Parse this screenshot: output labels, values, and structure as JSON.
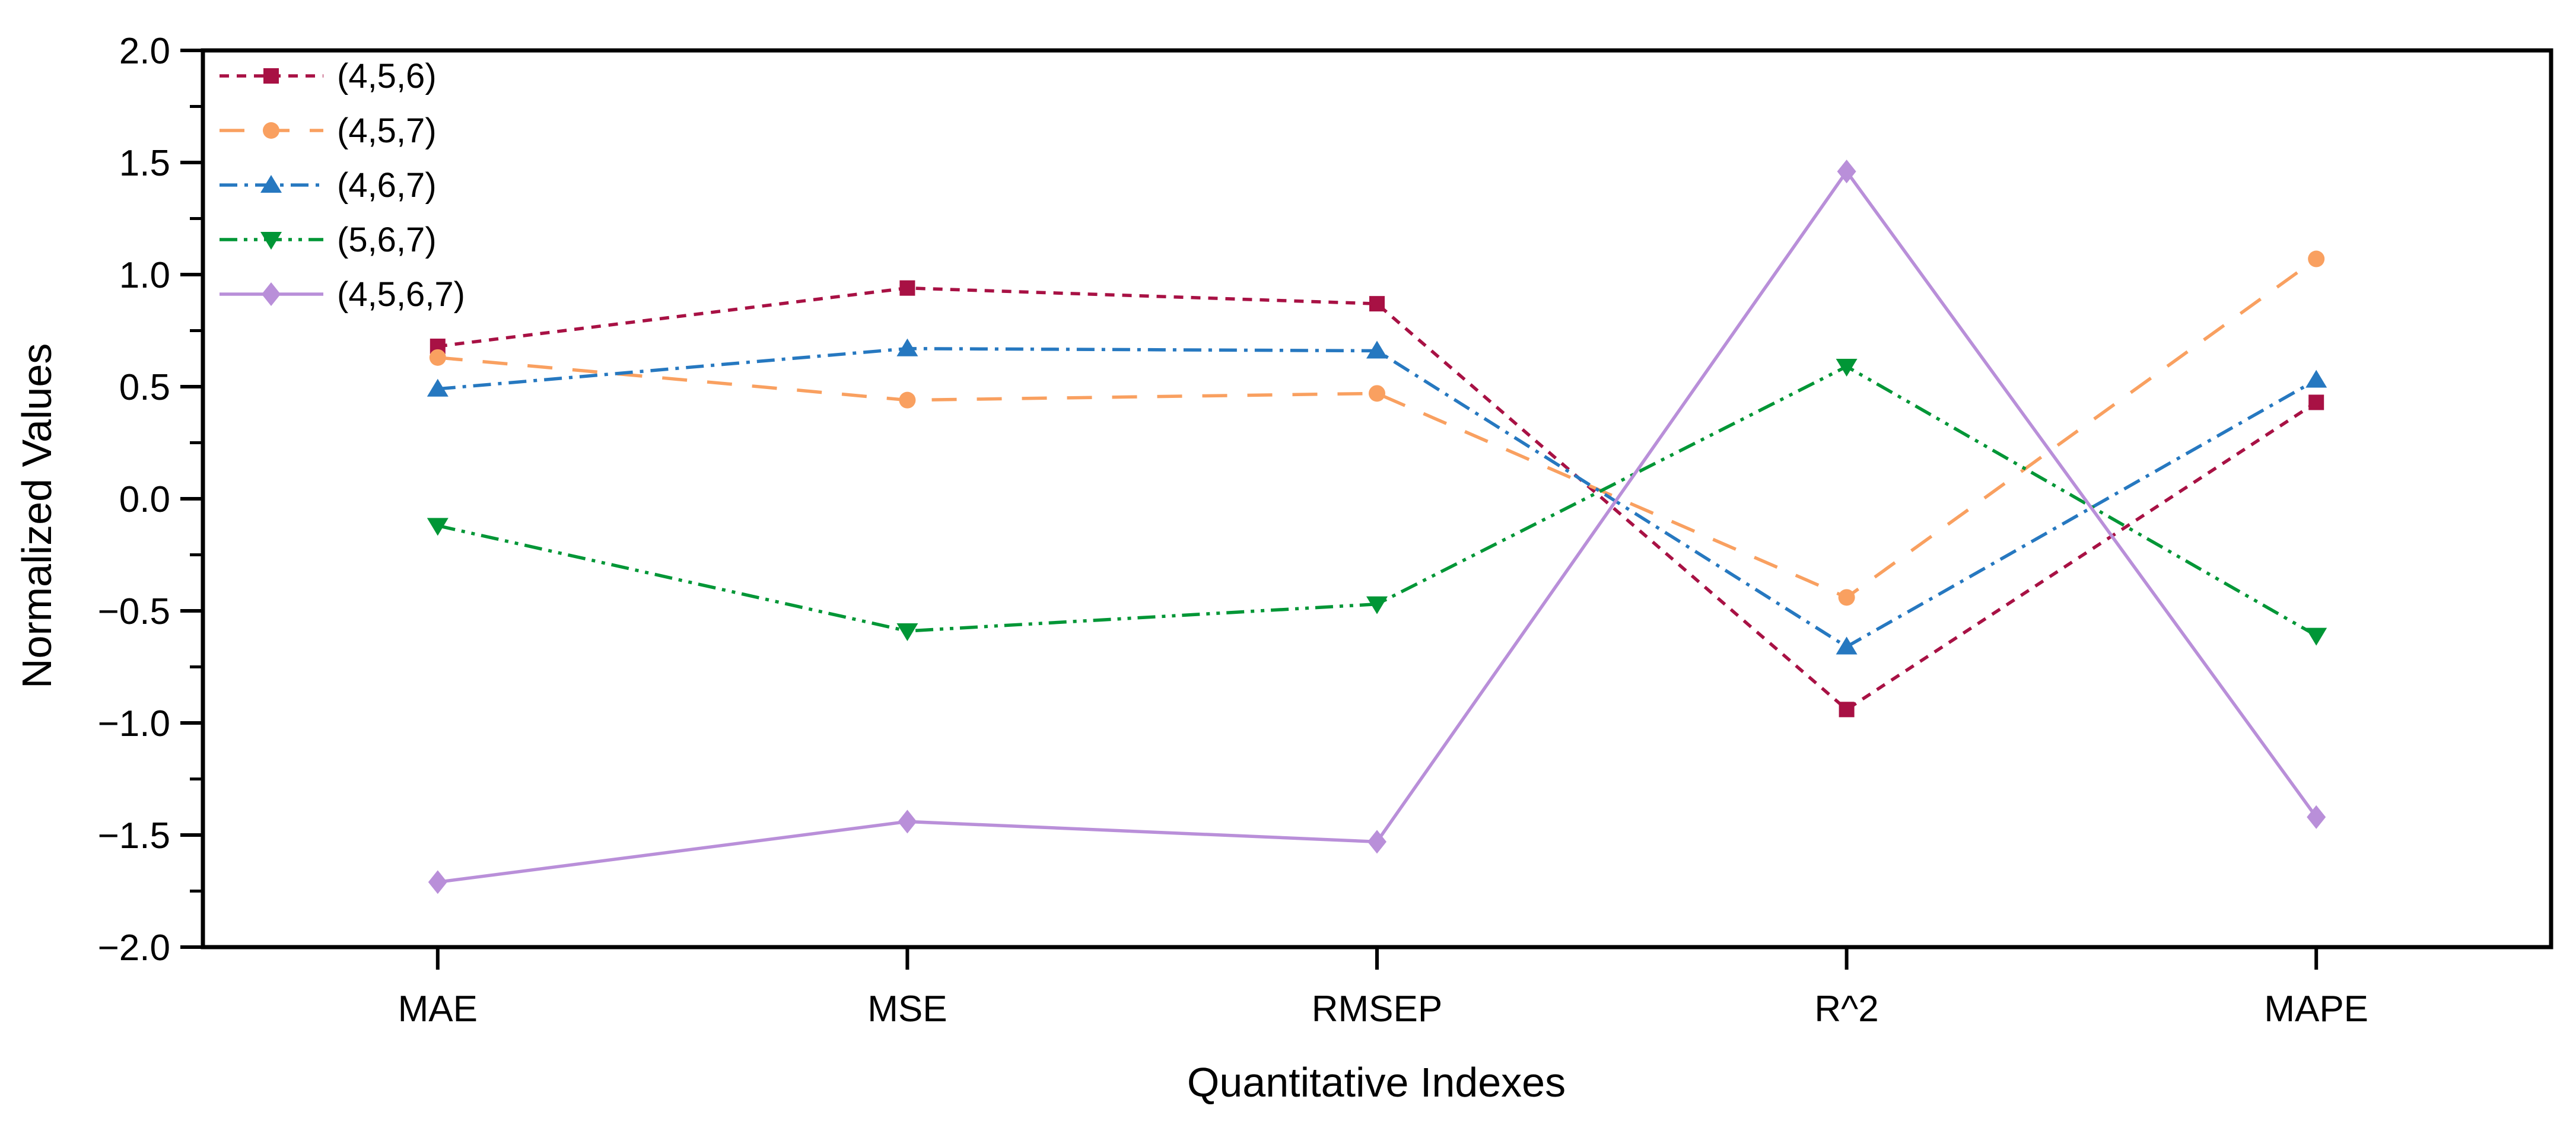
{
  "chart_data": {
    "type": "line",
    "title": "",
    "xlabel": "Quantitative Indexes",
    "ylabel": "Normalized Values",
    "categories": [
      "MAE",
      "MSE",
      "RMSEP",
      "R^2",
      "MAPE"
    ],
    "ylim": [
      -2.0,
      2.0
    ],
    "ytick_step": 0.5,
    "ytick_minor_step": 0.25,
    "ytick_labels": [
      "2.0",
      "1.5",
      "1.0",
      "0.5",
      "0.0",
      "−0.5",
      "−1.0",
      "−1.5",
      "−2.0"
    ],
    "grid": false,
    "legend_position": "top-left-inside",
    "series": [
      {
        "name": "(4,5,6)",
        "color": "#a81144",
        "marker": "square",
        "line_style": "dash",
        "values": [
          0.68,
          0.94,
          0.87,
          -0.94,
          0.43
        ]
      },
      {
        "name": "(4,5,7)",
        "color": "#f9a060",
        "marker": "circle",
        "line_style": "long-dash",
        "values": [
          0.63,
          0.44,
          0.47,
          -0.44,
          1.07
        ]
      },
      {
        "name": "(4,6,7)",
        "color": "#2678c0",
        "marker": "triangle-up",
        "line_style": "dash-dot",
        "values": [
          0.49,
          0.67,
          0.66,
          -0.66,
          0.53
        ]
      },
      {
        "name": "(5,6,7)",
        "color": "#009636",
        "marker": "triangle-down",
        "line_style": "dash-dot-dot",
        "values": [
          -0.12,
          -0.59,
          -0.47,
          0.59,
          -0.61
        ]
      },
      {
        "name": "(4,5,6,7)",
        "color": "#b98fd9",
        "marker": "diamond",
        "line_style": "solid",
        "values": [
          -1.71,
          -1.44,
          -1.53,
          1.46,
          -1.42
        ]
      }
    ]
  },
  "axis_color": "#000000",
  "background_color": "#ffffff"
}
